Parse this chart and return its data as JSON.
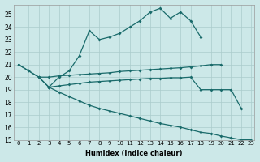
{
  "xlabel": "Humidex (Indice chaleur)",
  "background_color": "#cce8e8",
  "grid_color": "#aacccc",
  "line_color": "#1a6b6b",
  "xlim": [
    -0.5,
    23.3
  ],
  "ylim": [
    15,
    25.8
  ],
  "yticks": [
    15,
    16,
    17,
    18,
    19,
    20,
    21,
    22,
    23,
    24,
    25
  ],
  "xticks": [
    0,
    1,
    2,
    3,
    4,
    5,
    6,
    7,
    8,
    9,
    10,
    11,
    12,
    13,
    14,
    15,
    16,
    17,
    18,
    19,
    20,
    21,
    22,
    23
  ],
  "curves": [
    {
      "x": [
        0,
        1,
        2,
        3,
        4,
        5,
        6,
        7,
        8,
        9,
        10,
        11,
        12,
        13,
        14,
        15,
        16,
        17,
        18
      ],
      "y": [
        21.0,
        20.5,
        20.0,
        19.2,
        20.0,
        20.5,
        21.7,
        23.7,
        23.0,
        23.2,
        23.5,
        24.0,
        24.5,
        25.2,
        25.5,
        24.7,
        25.2,
        24.5,
        23.2
      ]
    },
    {
      "x": [
        2,
        3,
        4,
        5,
        6,
        7,
        8,
        9,
        10,
        11,
        12,
        13,
        14,
        15,
        16,
        17,
        18,
        19,
        20
      ],
      "y": [
        20.0,
        20.0,
        20.1,
        20.15,
        20.2,
        20.25,
        20.3,
        20.35,
        20.45,
        20.5,
        20.55,
        20.6,
        20.65,
        20.7,
        20.75,
        20.82,
        20.9,
        21.0,
        21.0
      ]
    },
    {
      "x": [
        3,
        4,
        5,
        6,
        7,
        8,
        9,
        10,
        11,
        12,
        13,
        14,
        15,
        16,
        17,
        18,
        19,
        20,
        21,
        22
      ],
      "y": [
        19.2,
        19.3,
        19.4,
        19.5,
        19.6,
        19.65,
        19.7,
        19.75,
        19.8,
        19.85,
        19.9,
        19.9,
        19.95,
        19.95,
        20.0,
        19.0,
        19.0,
        19.0,
        19.0,
        17.5
      ]
    },
    {
      "x": [
        0,
        1,
        2,
        3,
        4,
        5,
        6,
        7,
        8,
        9,
        10,
        11,
        12,
        13,
        14,
        15,
        16,
        17,
        18,
        19,
        20,
        21,
        22,
        23
      ],
      "y": [
        21.0,
        20.5,
        20.0,
        19.2,
        18.8,
        18.45,
        18.1,
        17.75,
        17.5,
        17.3,
        17.1,
        16.9,
        16.7,
        16.5,
        16.3,
        16.15,
        16.0,
        15.8,
        15.6,
        15.5,
        15.3,
        15.15,
        15.0,
        15.0
      ]
    }
  ]
}
